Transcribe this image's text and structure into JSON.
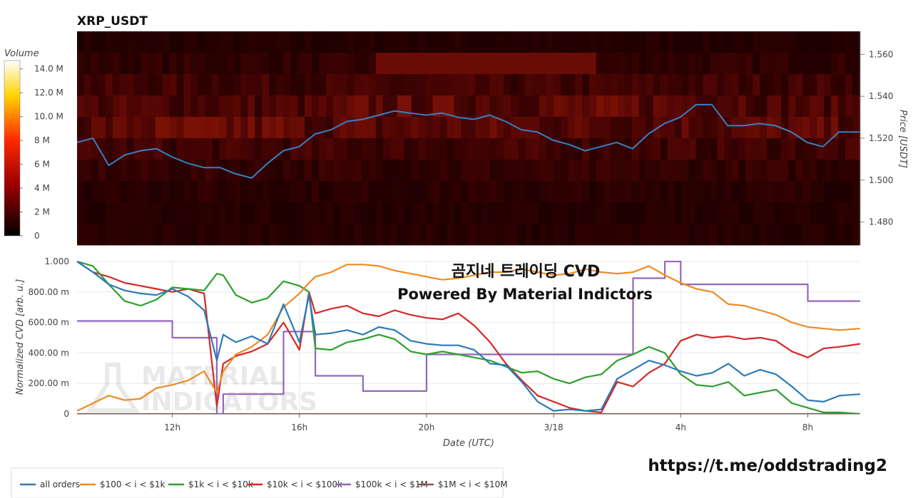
{
  "heatmap": {
    "title": "XRP_USDT",
    "colorbar_title": "Volume",
    "colorbar_ticks": [
      "14.0 M",
      "12.0 M",
      "10.0 M",
      "8 M",
      "6 M",
      "4 M",
      "2 M",
      "0"
    ],
    "colorbar_values": [
      14,
      12,
      10,
      8,
      6,
      4,
      2,
      0
    ],
    "price_axis_title": "Price [USDT]",
    "price_ticks": [
      "1.560",
      "1.540",
      "1.520",
      "1.500",
      "1.480"
    ],
    "price_values": [
      1.56,
      1.54,
      1.52,
      1.5,
      1.48
    ],
    "price_range": [
      1.469,
      1.571
    ]
  },
  "overlay": {
    "line1": "곰지네 트레이딩 CVD",
    "line2": "Powered By Material Indictors",
    "watermark_line1": "MATERIAL",
    "watermark_line2": "INDICATORS",
    "link": "https://t.me/oddstrading2"
  },
  "cvd_axis": {
    "ylabel": "Normalized CVD [arb. u.]",
    "xlabel": "Date (UTC)",
    "y_ticks": [
      "1.000",
      "800.00 m",
      "600.00 m",
      "400.00 m",
      "200.00 m",
      "0"
    ],
    "y_values": [
      1.0,
      0.8,
      0.6,
      0.4,
      0.2,
      0
    ],
    "x_ticks": [
      "12h",
      "16h",
      "20h",
      "3/18",
      "4h",
      "8h"
    ],
    "x_values": [
      12,
      16,
      20,
      24,
      28,
      32
    ],
    "x_range": [
      9.0,
      33.65
    ],
    "y_range": [
      0,
      1
    ]
  },
  "legend": [
    {
      "label": "all orders",
      "color": "#2b7bb9"
    },
    {
      "label": "$100 < i < $1k",
      "color": "#f08a24"
    },
    {
      "label": "$1k < i < $10k",
      "color": "#2ca02c"
    },
    {
      "label": "$10k < i < $100k",
      "color": "#d62728"
    },
    {
      "label": "$100k < i < $1M",
      "color": "#9467bd"
    },
    {
      "label": "$1M < i < $10M",
      "color": "#8c564b"
    }
  ],
  "chart_data": [
    {
      "type": "heatmap",
      "title": "XRP_USDT",
      "ylabel": "Price [USDT]",
      "ylim": [
        1.469,
        1.571
      ],
      "x_range": [
        9.0,
        33.65
      ],
      "price_line": {
        "color": "#3a7fc2",
        "x": [
          9.0,
          9.5,
          10.0,
          10.5,
          11.0,
          11.5,
          12.0,
          12.5,
          13.0,
          13.5,
          14.0,
          14.5,
          15.0,
          15.5,
          16.0,
          16.5,
          17.0,
          17.5,
          18.0,
          18.5,
          19.0,
          19.5,
          20.0,
          20.5,
          21.0,
          21.5,
          22.0,
          22.5,
          23.0,
          23.5,
          24.0,
          24.5,
          25.0,
          25.5,
          26.0,
          26.5,
          27.0,
          27.5,
          28.0,
          28.5,
          29.0,
          29.5,
          30.0,
          30.5,
          31.0,
          31.5,
          32.0,
          32.5,
          33.0,
          33.65
        ],
        "y": [
          1.518,
          1.52,
          1.507,
          1.512,
          1.514,
          1.515,
          1.511,
          1.508,
          1.506,
          1.506,
          1.503,
          1.501,
          1.508,
          1.514,
          1.516,
          1.522,
          1.524,
          1.528,
          1.529,
          1.531,
          1.533,
          1.532,
          1.531,
          1.532,
          1.53,
          1.529,
          1.531,
          1.528,
          1.524,
          1.523,
          1.519,
          1.517,
          1.514,
          1.516,
          1.518,
          1.515,
          1.522,
          1.527,
          1.53,
          1.536,
          1.536,
          1.526,
          1.526,
          1.527,
          1.526,
          1.523,
          1.518,
          1.516,
          1.523,
          1.523
        ]
      }
    },
    {
      "type": "line",
      "xlabel": "Date (UTC)",
      "ylabel": "Normalized CVD [arb. u.]",
      "ylim": [
        0,
        1
      ],
      "x": [
        9.0,
        9.5,
        10.0,
        10.5,
        11.0,
        11.5,
        12.0,
        12.5,
        13.0,
        13.4,
        13.6,
        14.0,
        14.5,
        15.0,
        15.5,
        16.0,
        16.3,
        16.5,
        17.0,
        17.5,
        18.0,
        18.5,
        19.0,
        19.5,
        20.0,
        20.5,
        21.0,
        21.5,
        22.0,
        22.5,
        23.0,
        23.5,
        24.0,
        24.5,
        25.0,
        25.5,
        26.0,
        26.5,
        27.0,
        27.5,
        28.0,
        28.5,
        29.0,
        29.5,
        30.0,
        30.5,
        31.0,
        31.5,
        32.0,
        32.5,
        33.0,
        33.65
      ],
      "series": [
        {
          "name": "all orders",
          "color": "#2b7bb9",
          "values": [
            1.0,
            0.93,
            0.85,
            0.81,
            0.79,
            0.78,
            0.82,
            0.77,
            0.68,
            0.35,
            0.52,
            0.47,
            0.51,
            0.46,
            0.72,
            0.47,
            0.78,
            0.52,
            0.53,
            0.55,
            0.52,
            0.57,
            0.55,
            0.48,
            0.46,
            0.45,
            0.45,
            0.42,
            0.33,
            0.32,
            0.21,
            0.08,
            0.02,
            0.03,
            0.02,
            0.03,
            0.23,
            0.29,
            0.35,
            0.32,
            0.28,
            0.25,
            0.27,
            0.33,
            0.25,
            0.29,
            0.26,
            0.18,
            0.09,
            0.08,
            0.12,
            0.13
          ]
        },
        {
          "name": "$100 < i < $1k",
          "color": "#f08a24",
          "values": [
            0.02,
            0.07,
            0.12,
            0.09,
            0.1,
            0.17,
            0.19,
            0.22,
            0.28,
            0.14,
            0.28,
            0.39,
            0.44,
            0.52,
            0.7,
            0.79,
            0.86,
            0.9,
            0.93,
            0.98,
            0.98,
            0.97,
            0.94,
            0.92,
            0.9,
            0.88,
            0.89,
            0.91,
            0.93,
            0.93,
            0.95,
            0.93,
            0.91,
            0.92,
            0.95,
            0.93,
            0.92,
            0.93,
            0.97,
            0.91,
            0.86,
            0.82,
            0.8,
            0.72,
            0.71,
            0.68,
            0.65,
            0.6,
            0.57,
            0.56,
            0.55,
            0.56
          ]
        },
        {
          "name": "$1k < i < $10k",
          "color": "#2ca02c",
          "values": [
            1.0,
            0.97,
            0.85,
            0.74,
            0.71,
            0.75,
            0.83,
            0.82,
            0.81,
            0.92,
            0.91,
            0.78,
            0.73,
            0.76,
            0.87,
            0.84,
            0.8,
            0.43,
            0.42,
            0.47,
            0.49,
            0.52,
            0.49,
            0.41,
            0.39,
            0.41,
            0.39,
            0.37,
            0.35,
            0.31,
            0.27,
            0.28,
            0.23,
            0.2,
            0.24,
            0.26,
            0.35,
            0.39,
            0.44,
            0.4,
            0.26,
            0.19,
            0.18,
            0.21,
            0.12,
            0.14,
            0.16,
            0.07,
            0.04,
            0.01,
            0.01,
            0.0
          ]
        },
        {
          "name": "$10k < i < $100k",
          "color": "#d62728",
          "values": [
            1.0,
            0.93,
            0.9,
            0.86,
            0.84,
            0.82,
            0.8,
            0.82,
            0.79,
            0.05,
            0.33,
            0.38,
            0.41,
            0.46,
            0.6,
            0.42,
            0.8,
            0.66,
            0.69,
            0.71,
            0.66,
            0.64,
            0.68,
            0.65,
            0.63,
            0.62,
            0.66,
            0.58,
            0.47,
            0.33,
            0.22,
            0.12,
            0.08,
            0.04,
            0.02,
            0.01,
            0.21,
            0.18,
            0.27,
            0.33,
            0.48,
            0.52,
            0.5,
            0.51,
            0.49,
            0.5,
            0.48,
            0.41,
            0.37,
            0.43,
            0.44,
            0.46
          ]
        },
        {
          "name": "$100k < i < $1M",
          "color": "#9467bd",
          "values": [
            0.61,
            0.61,
            0.61,
            0.61,
            0.61,
            0.61,
            0.5,
            0.5,
            0.5,
            0.0,
            0.13,
            0.13,
            0.13,
            0.13,
            0.54,
            0.54,
            0.54,
            0.25,
            0.25,
            0.25,
            0.15,
            0.15,
            0.15,
            0.15,
            0.39,
            0.39,
            0.39,
            0.39,
            0.39,
            0.39,
            0.39,
            0.39,
            0.39,
            0.39,
            0.39,
            0.39,
            0.39,
            0.89,
            0.89,
            1.0,
            0.85,
            0.85,
            0.85,
            0.85,
            0.85,
            0.85,
            0.85,
            0.85,
            0.74,
            0.74,
            0.74,
            0.74
          ]
        },
        {
          "name": "$1M < i < $10M",
          "color": "#8c564b",
          "values": [
            0,
            0,
            0,
            0,
            0,
            0,
            0,
            0,
            0,
            0,
            0,
            0,
            0,
            0,
            0,
            0,
            0,
            0,
            0,
            0,
            0,
            0,
            0,
            0,
            0,
            0,
            0,
            0,
            0,
            0,
            0,
            0,
            0,
            0,
            0,
            0,
            0,
            0,
            0,
            0,
            0,
            0,
            0,
            0,
            0,
            0,
            0,
            0,
            0,
            0,
            0,
            0
          ]
        }
      ]
    }
  ]
}
